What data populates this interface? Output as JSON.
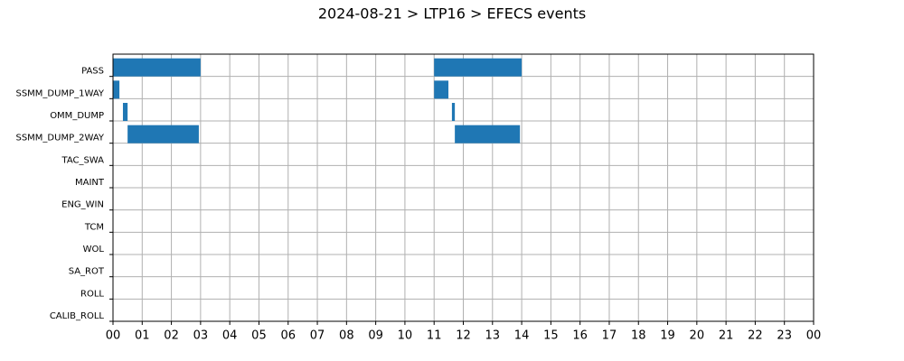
{
  "chart_data": {
    "type": "timeline",
    "title": "2024-08-21 > LTP16 > EFECS events",
    "categories": [
      "PASS",
      "SSMM_DUMP_1WAY",
      "OMM_DUMP",
      "SSMM_DUMP_2WAY",
      "TAC_SWA",
      "MAINT",
      "ENG_WIN",
      "TCM",
      "WOL",
      "SA_ROT",
      "ROLL",
      "CALIB_ROLL"
    ],
    "intervals": [
      [
        [
          0,
          3.0
        ],
        [
          11.0,
          14.0
        ]
      ],
      [
        [
          0,
          0.22
        ],
        [
          11.0,
          11.49
        ]
      ],
      [
        [
          0.34,
          0.5
        ],
        [
          11.61,
          11.71
        ]
      ],
      [
        [
          0.5,
          2.94
        ],
        [
          11.71,
          13.94
        ]
      ],
      [],
      [],
      [],
      [],
      [],
      [],
      [],
      []
    ],
    "color": "#1f77b4",
    "xlim": [
      0,
      24
    ],
    "xticks": [
      {
        "value": 0,
        "label": "00"
      },
      {
        "value": 1,
        "label": "01"
      },
      {
        "value": 2,
        "label": "02"
      },
      {
        "value": 3,
        "label": "03"
      },
      {
        "value": 4,
        "label": "04"
      },
      {
        "value": 5,
        "label": "05"
      },
      {
        "value": 6,
        "label": "06"
      },
      {
        "value": 7,
        "label": "07"
      },
      {
        "value": 8,
        "label": "08"
      },
      {
        "value": 9,
        "label": "09"
      },
      {
        "value": 10,
        "label": "10"
      },
      {
        "value": 11,
        "label": "11"
      },
      {
        "value": 12,
        "label": "12"
      },
      {
        "value": 13,
        "label": "13"
      },
      {
        "value": 14,
        "label": "14"
      },
      {
        "value": 15,
        "label": "15"
      },
      {
        "value": 16,
        "label": "16"
      },
      {
        "value": 17,
        "label": "17"
      },
      {
        "value": 18,
        "label": "18"
      },
      {
        "value": 19,
        "label": "19"
      },
      {
        "value": 20,
        "label": "20"
      },
      {
        "value": 21,
        "label": "21"
      },
      {
        "value": 22,
        "label": "22"
      },
      {
        "value": 23,
        "label": "23"
      },
      {
        "value": 24,
        "label": "00"
      }
    ],
    "grid": true
  }
}
